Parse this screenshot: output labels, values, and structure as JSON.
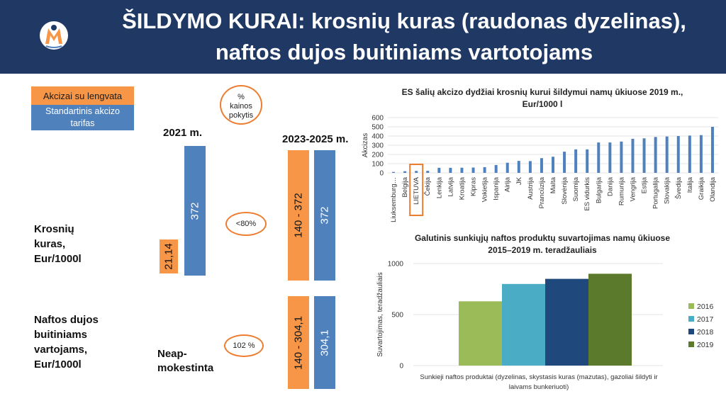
{
  "header": {
    "title_line1": "ŠILDYMO KURAI: krosnių kuras (raudonas dyzelinas),",
    "title_line2": "naftos dujos buitiniams vartotojams"
  },
  "legend": {
    "reduced": "Akcizai su lengvata",
    "standard_line1": "Standartinis akcizo",
    "standard_line2": "tarifas"
  },
  "ovals": {
    "pct_line1": "%",
    "pct_line2": "kainos",
    "pct_line3": "pokytis",
    "krosniu": "<80%",
    "dujos": "102 %"
  },
  "years": {
    "y2021": "2021 m.",
    "y2023": "2023-2025 m."
  },
  "rows": {
    "krosniu": [
      "Krosnių",
      "kuras,",
      "Eur/1000l"
    ],
    "dujos": [
      "Naftos dujos",
      "buitiniams",
      "vartojams,",
      "Eur/1000l"
    ],
    "neap": [
      "Neap-",
      "mokestinta"
    ]
  },
  "bars": {
    "kr_2021_reduced": "21,14",
    "kr_2021_standard": "372",
    "kr_2023_reduced": "140 - 372",
    "kr_2023_standard": "372",
    "du_2023_reduced": "140 - 304,1",
    "du_2023_standard": "304,1"
  },
  "colors": {
    "orange": "#f79646",
    "blue": "#4f81bd",
    "header": "#1f3864"
  },
  "chart_data": [
    {
      "type": "bar",
      "title": "ES šalių akcizo dydžiai krosnių kurui šildymui namų ūkiuose 2019 m., Eur/1000 l",
      "title_line1": "ES šalių akcizo dydžiai krosnių kurui šildymui namų ūkiuose 2019 m.,",
      "title_line2": "Eur/1000 l",
      "ylabel": "Akcizas",
      "xlabel": "",
      "ylim": [
        0,
        600
      ],
      "yticks": [
        "0",
        "100",
        "200",
        "300",
        "400",
        "500",
        "600"
      ],
      "highlight": "LIETUVA",
      "categories": [
        "Liuksemburg…",
        "Belgija",
        "LIETUVA",
        "Čekija",
        "Lenkija",
        "Latvija",
        "Kroatija",
        "Kipras",
        "Vokietija",
        "Ispanija",
        "Airija",
        "JK",
        "Austrija",
        "Prancūzija",
        "Malta",
        "Slovėnija",
        "Suomija",
        "ES vidurkis",
        "Bulgarija",
        "Danija",
        "Rumunija",
        "Vengrija",
        "Estija",
        "Portugalija",
        "Slovakija",
        "Švedija",
        "Italija",
        "Graikija",
        "Olandija"
      ],
      "values": [
        10,
        18,
        21,
        22,
        55,
        55,
        56,
        58,
        62,
        85,
        110,
        130,
        128,
        160,
        175,
        230,
        255,
        255,
        330,
        330,
        340,
        370,
        375,
        390,
        395,
        400,
        405,
        410,
        500
      ]
    },
    {
      "type": "bar",
      "title": "Galutinis sunkiųjų naftos produktų suvartojimas namų ūkiuose 2015–2019 m. teradžauliais",
      "title_line1": "Galutinis sunkiųjų naftos produktų suvartojimas namų ūkiuose",
      "title_line2": "2015–2019 m. teradžauliais",
      "ylabel": "Suvartojimas, teradžauliais",
      "ylim": [
        0,
        1000
      ],
      "yticks": [
        "0",
        "500",
        "1000"
      ],
      "category_line1": "Sunkieji naftos produktai (dyzelinas, skystasis kuras (mazutas), gazoliai šildyti ir",
      "category_line2": "laivams bunkeriuoti)",
      "legend_position": "right",
      "series": [
        {
          "name": "2016",
          "value": 630,
          "color": "#9bbb59"
        },
        {
          "name": "2017",
          "value": 800,
          "color": "#4bacc6"
        },
        {
          "name": "2018",
          "value": 850,
          "color": "#1f497d"
        },
        {
          "name": "2019",
          "value": 900,
          "color": "#5b7a2b"
        }
      ]
    }
  ]
}
